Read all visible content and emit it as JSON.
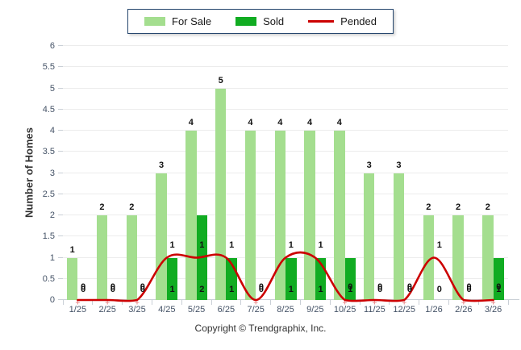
{
  "legend": {
    "items": [
      {
        "label": "For Sale",
        "type": "swatch",
        "color": "#A4DE8F"
      },
      {
        "label": "Sold",
        "type": "swatch",
        "color": "#11AC22"
      },
      {
        "label": "Pended",
        "type": "line",
        "color": "#CC0000"
      }
    ]
  },
  "y_axis": {
    "title": "Number of Homes",
    "ticks": [
      "0",
      "0.5",
      "1",
      "1.5",
      "2",
      "2.5",
      "3",
      "3.5",
      "4",
      "4.5",
      "5",
      "5.5",
      "6"
    ]
  },
  "footer": {
    "copyright": "Copyright © Trendgraphix, Inc."
  },
  "chart_data": {
    "type": "bar",
    "title": "",
    "xlabel": "",
    "ylabel": "Number of Homes",
    "ylim": [
      0,
      6
    ],
    "ytick_step": 0.5,
    "grid": true,
    "legend_position": "top-center",
    "categories": [
      "1/25",
      "2/25",
      "3/25",
      "4/25",
      "5/25",
      "6/25",
      "7/25",
      "8/25",
      "9/25",
      "10/25",
      "11/25",
      "12/25",
      "1/26",
      "2/26",
      "3/26"
    ],
    "series": [
      {
        "name": "For Sale",
        "type": "bar",
        "color": "#A4DE8F",
        "values": [
          1,
          2,
          2,
          3,
          4,
          5,
          4,
          4,
          4,
          4,
          3,
          3,
          2,
          2,
          2
        ]
      },
      {
        "name": "Sold",
        "type": "bar",
        "color": "#11AC22",
        "values": [
          0,
          0,
          0,
          1,
          2,
          1,
          0,
          1,
          1,
          1,
          0,
          0,
          0,
          0,
          1
        ]
      },
      {
        "name": "Pended",
        "type": "line",
        "color": "#CC0000",
        "values": [
          0,
          0,
          0,
          1,
          1,
          1,
          0,
          1,
          1,
          0,
          0,
          0,
          1,
          0,
          0
        ]
      }
    ]
  }
}
